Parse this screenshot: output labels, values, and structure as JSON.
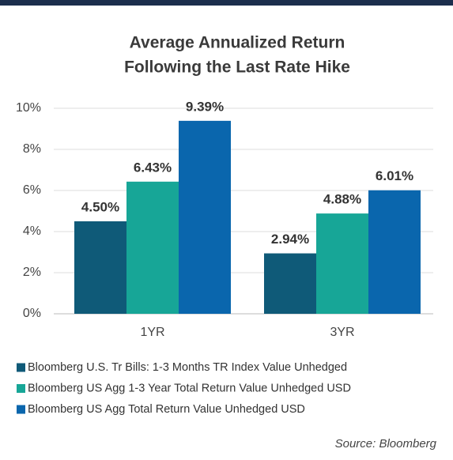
{
  "chart_data": {
    "type": "bar",
    "title": "Average Annualized Return",
    "subtitle": "Following the Last Rate Hike",
    "categories": [
      "1YR",
      "3YR"
    ],
    "series": [
      {
        "name": "Bloomberg U.S. Tr Bills: 1-3 Months TR Index Value Unhedged",
        "color": "#0f5a78",
        "values": [
          4.5,
          2.94
        ],
        "value_labels": [
          "4.50%",
          "2.94%"
        ]
      },
      {
        "name": "Bloomberg US Agg 1-3 Year Total Return Value Unhedged USD",
        "color": "#17a697",
        "values": [
          6.43,
          4.88
        ],
        "value_labels": [
          "6.43%",
          "4.88%"
        ]
      },
      {
        "name": "Bloomberg US Agg Total Return Value Unhedged USD",
        "color": "#0a66ad",
        "values": [
          9.39,
          6.01
        ],
        "value_labels": [
          "9.39%",
          "6.01%"
        ]
      }
    ],
    "ylim": [
      0,
      10
    ],
    "yticks": [
      {
        "value": 0,
        "label": "0%"
      },
      {
        "value": 2,
        "label": "2%"
      },
      {
        "value": 4,
        "label": "4%"
      },
      {
        "value": 6,
        "label": "6%"
      },
      {
        "value": 8,
        "label": "8%"
      },
      {
        "value": 10,
        "label": "10%"
      }
    ],
    "grid": true,
    "source": "Source: Bloomberg"
  }
}
